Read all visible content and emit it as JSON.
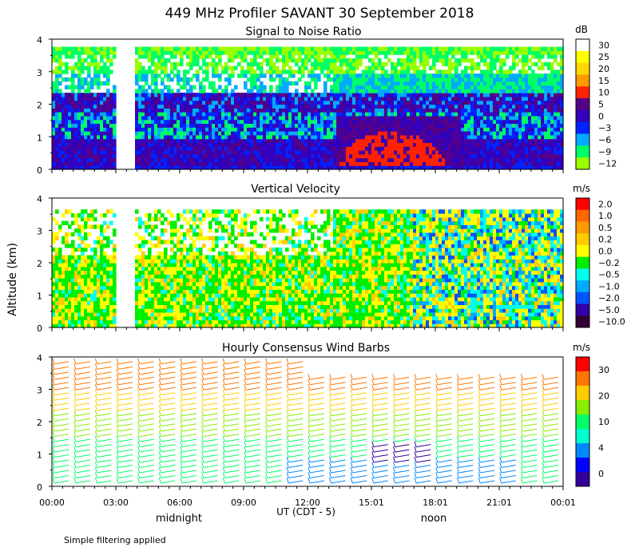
{
  "figure": {
    "title": "449 MHz Profiler SAVANT 30 September 2018",
    "ylabel": "Altitude (km)",
    "xlabel": "UT  (CDT - 5)",
    "marks": {
      "midnight": "midnight",
      "noon": "noon"
    },
    "footnote": "Simple filtering applied"
  },
  "chart_data": [
    {
      "type": "heatmap",
      "title": "Signal to Noise Ratio",
      "xlabel": "UT  (CDT - 5)",
      "ylabel": "Altitude (km)",
      "x_ticks": [
        "00:00",
        "03:00",
        "06:00",
        "09:00",
        "12:00",
        "15:01",
        "18:01",
        "21:01",
        "00:01"
      ],
      "y_ticks": [
        "0",
        "1",
        "2",
        "3",
        "4"
      ],
      "ylim": [
        0,
        4
      ],
      "data_gap": [
        "03:10",
        "03:50"
      ],
      "colorbar": {
        "unit": "dB",
        "levels": [
          "30",
          "25",
          "20",
          "15",
          "10",
          "5",
          "0",
          "−3",
          "−6",
          "−9",
          "−12"
        ],
        "colors": [
          "#ffffff",
          "#ffff00",
          "#ffd700",
          "#ff9900",
          "#ff2200",
          "#550088",
          "#3300bb",
          "#0022ff",
          "#00aaff",
          "#00ff66",
          "#99ff00"
        ]
      }
    },
    {
      "type": "heatmap",
      "title": "Vertical Velocity",
      "xlabel": "UT  (CDT - 5)",
      "ylabel": "Altitude (km)",
      "x_ticks": [
        "00:00",
        "03:00",
        "06:00",
        "09:00",
        "12:00",
        "15:01",
        "18:01",
        "21:01",
        "00:01"
      ],
      "y_ticks": [
        "0",
        "1",
        "2",
        "3",
        "4"
      ],
      "ylim": [
        0,
        4
      ],
      "data_gap": [
        "03:10",
        "03:50"
      ],
      "colorbar": {
        "unit": "m/s",
        "levels": [
          "2.0",
          "1.0",
          "0.5",
          "0.2",
          "0.0",
          "−0.2",
          "−0.5",
          "−1.0",
          "−2.0",
          "−5.0",
          "−10.0"
        ],
        "colors": [
          "#ff0000",
          "#ff6600",
          "#ff9900",
          "#ffcc00",
          "#ffff00",
          "#00ee00",
          "#00ffee",
          "#00aaff",
          "#0055ff",
          "#3300aa",
          "#330033"
        ]
      }
    },
    {
      "type": "scatter",
      "title": "Hourly Consensus Wind Barbs",
      "xlabel": "UT  (CDT - 5)",
      "ylabel": "Altitude (km)",
      "x_ticks": [
        "00:00",
        "03:00",
        "06:00",
        "09:00",
        "12:00",
        "15:01",
        "18:01",
        "21:01",
        "00:01"
      ],
      "y_ticks": [
        "0",
        "1",
        "2",
        "3",
        "4"
      ],
      "ylim": [
        0,
        4
      ],
      "colorbar": {
        "unit": "m/s",
        "levels": [
          "30",
          "20",
          "10",
          "4",
          "0"
        ],
        "colors": [
          "#ff0000",
          "#ff7700",
          "#ffcc00",
          "#88ee00",
          "#00ff66",
          "#00ffcc",
          "#0088ff",
          "#0000ff",
          "#330099"
        ]
      }
    }
  ]
}
